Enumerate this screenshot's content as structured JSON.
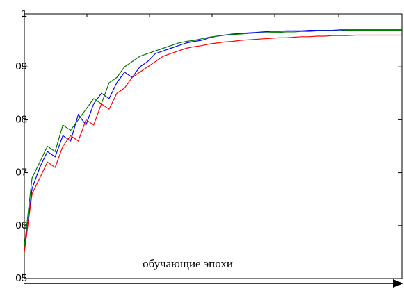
{
  "chart_data": {
    "type": "line",
    "x_label": "обучающие эпохи",
    "ylim": [
      0.5,
      1
    ],
    "yticks": [
      {
        "value": 0.5,
        "label": "05"
      },
      {
        "value": 0.6,
        "label": "06"
      },
      {
        "value": 0.7,
        "label": "07"
      },
      {
        "value": 0.8,
        "label": "08"
      },
      {
        "value": 0.9,
        "label": "09"
      },
      1
    ],
    "series": [
      {
        "color": "#0000ff",
        "values": [
          0.55,
          0.67,
          0.71,
          0.74,
          0.73,
          0.77,
          0.76,
          0.81,
          0.79,
          0.83,
          0.85,
          0.84,
          0.87,
          0.89,
          0.88,
          0.9,
          0.91,
          0.925,
          0.93,
          0.935,
          0.94,
          0.945,
          0.948,
          0.95,
          0.955,
          0.958,
          0.96,
          0.962,
          0.963,
          0.964,
          0.965,
          0.966,
          0.967,
          0.967,
          0.968,
          0.968,
          0.968,
          0.969,
          0.969,
          0.969,
          0.969,
          0.97,
          0.97,
          0.97,
          0.97,
          0.97,
          0.97,
          0.97,
          0.97,
          0.97
        ]
      },
      {
        "color": "#007a00",
        "values": [
          0.56,
          0.69,
          0.72,
          0.75,
          0.74,
          0.79,
          0.78,
          0.8,
          0.82,
          0.84,
          0.83,
          0.87,
          0.88,
          0.9,
          0.91,
          0.92,
          0.925,
          0.93,
          0.935,
          0.94,
          0.945,
          0.948,
          0.95,
          0.953,
          0.956,
          0.958,
          0.96,
          0.961,
          0.962,
          0.963,
          0.964,
          0.964,
          0.965,
          0.965,
          0.966,
          0.966,
          0.967,
          0.967,
          0.968,
          0.968,
          0.968,
          0.968,
          0.969,
          0.969,
          0.969,
          0.969,
          0.969,
          0.969,
          0.969,
          0.969
        ]
      },
      {
        "color": "#ff0000",
        "values": [
          0.55,
          0.66,
          0.69,
          0.72,
          0.71,
          0.75,
          0.77,
          0.76,
          0.8,
          0.79,
          0.83,
          0.82,
          0.85,
          0.86,
          0.88,
          0.89,
          0.9,
          0.91,
          0.92,
          0.925,
          0.93,
          0.935,
          0.938,
          0.94,
          0.943,
          0.945,
          0.947,
          0.948,
          0.95,
          0.951,
          0.952,
          0.953,
          0.954,
          0.955,
          0.955,
          0.956,
          0.957,
          0.957,
          0.958,
          0.958,
          0.959,
          0.959,
          0.959,
          0.96,
          0.96,
          0.96,
          0.96,
          0.96,
          0.96,
          0.96
        ]
      }
    ]
  }
}
